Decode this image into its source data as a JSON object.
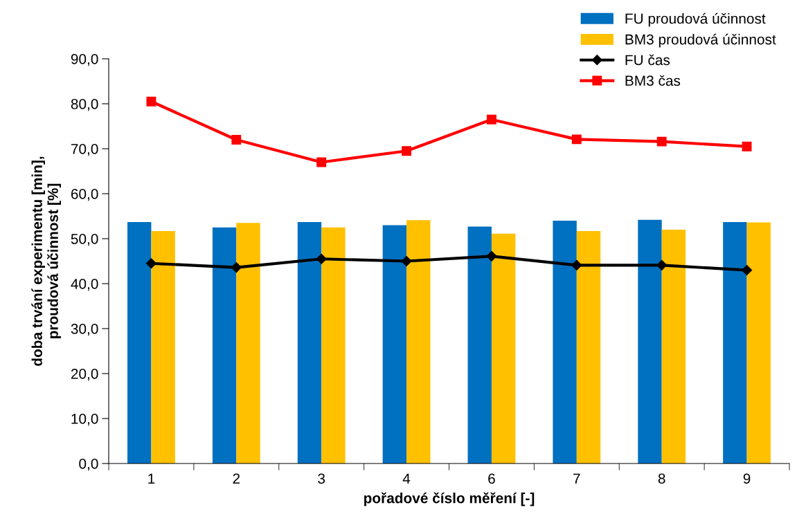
{
  "chart_data": {
    "type": "bar",
    "xlabel": "pořadové číslo měření [-]",
    "ylabel": "doba trvání experimentu [min],\nproudová účinnost [%]",
    "categories": [
      "1",
      "2",
      "3",
      "4",
      "6",
      "7",
      "8",
      "9"
    ],
    "series": [
      {
        "name": "FU proudová účinnost",
        "color": "#0070c0",
        "values": [
          53.7,
          52.5,
          53.7,
          53.0,
          52.7,
          54.0,
          54.2,
          53.7
        ]
      },
      {
        "name": "BM3 proudová účinnost",
        "color": "#ffc000",
        "values": [
          51.7,
          53.5,
          52.5,
          54.1,
          51.1,
          51.7,
          52.0,
          53.6
        ]
      },
      {
        "name": "FU čas",
        "type": "line",
        "color": "#000000",
        "marker": "diamond",
        "values": [
          44.5,
          43.6,
          45.5,
          45.0,
          46.1,
          44.1,
          44.1,
          43.0
        ]
      },
      {
        "name": "BM3 čas",
        "type": "line",
        "color": "#ff0000",
        "marker": "square",
        "values": [
          80.5,
          72.0,
          67.0,
          69.5,
          76.5,
          72.1,
          71.6,
          70.5
        ]
      }
    ],
    "ylim": [
      0,
      90
    ],
    "yticks": [
      {
        "value": 0,
        "label": "0,0"
      },
      {
        "value": 10,
        "label": "10,0"
      },
      {
        "value": 20,
        "label": "20,0"
      },
      {
        "value": 30,
        "label": "30,0"
      },
      {
        "value": 40,
        "label": "40,0"
      },
      {
        "value": 50,
        "label": "50,0"
      },
      {
        "value": 60,
        "label": "60,0"
      },
      {
        "value": 70,
        "label": "70,0"
      },
      {
        "value": 80,
        "label": "80,0"
      },
      {
        "value": 90,
        "label": "90,0"
      }
    ],
    "grid": false,
    "legend": "top right"
  }
}
